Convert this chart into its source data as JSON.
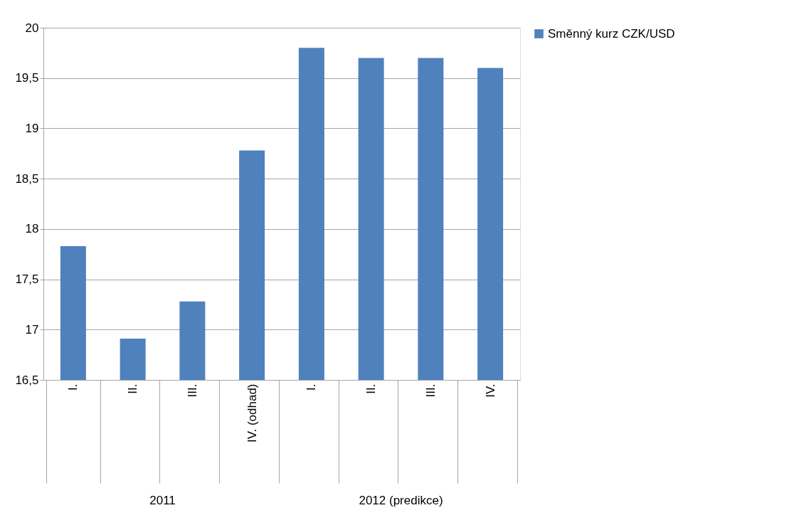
{
  "chart_data": {
    "type": "bar",
    "categories": [
      "I.",
      "II.",
      "III.",
      "IV. (odhad)",
      "I.",
      "II.",
      "III.",
      "IV."
    ],
    "series": [
      {
        "name": "Směnný kurz CZK/USD",
        "color": "#4f81bd",
        "values": [
          17.83,
          16.91,
          17.28,
          18.78,
          19.8,
          19.7,
          19.7,
          19.6
        ]
      }
    ],
    "ylim": [
      16.5,
      20
    ],
    "yticks": [
      {
        "value": 16.5,
        "label": "16,5"
      },
      {
        "value": 17,
        "label": "17"
      },
      {
        "value": 17.5,
        "label": "17,5"
      },
      {
        "value": 18,
        "label": "18"
      },
      {
        "value": 18.5,
        "label": "18,5"
      },
      {
        "value": 19,
        "label": "19"
      },
      {
        "value": 19.5,
        "label": "19,5"
      },
      {
        "value": 20,
        "label": "20"
      }
    ],
    "annotations": [
      "2011",
      "2012 (predikce)"
    ],
    "grid": "y",
    "legend": "right"
  }
}
